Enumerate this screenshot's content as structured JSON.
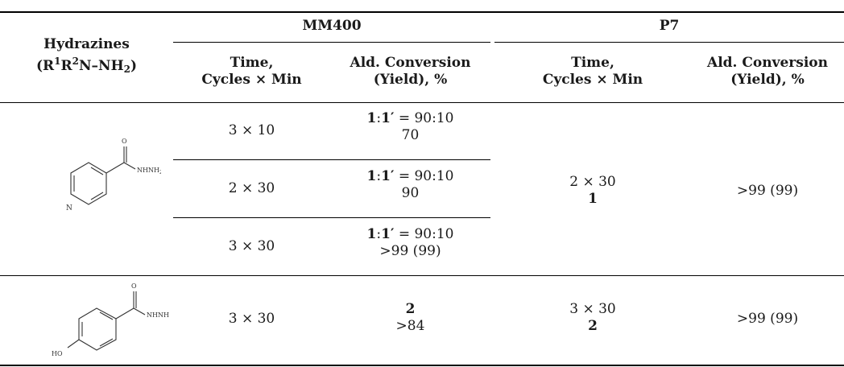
{
  "header": {
    "hydrazines_label": "Hydrazines",
    "formula": {
      "open": "(R",
      "r1_idx": "1",
      "r": "R",
      "r2_idx": "2",
      "mid": "N–NH",
      "h_idx": "2",
      "close": ")"
    },
    "group_mm400": "MM400",
    "group_p7": "P7",
    "time_label": "Time,",
    "cycles_label": "Cycles × Min",
    "conv_label": "Ald. Conversion",
    "yield_label": "(Yield), %"
  },
  "compounds": [
    {
      "name": "isonicotinic hydrazide",
      "atom_n": "N",
      "atom_o": "O",
      "atom_nhnh2": "NHNH",
      "atom_nhnh2_sub": "2"
    },
    {
      "name": "4-hydroxybenzohydrazide",
      "atom_ho": "HO",
      "atom_o": "O",
      "atom_nhnh2": "NHNH",
      "atom_nhnh2_sub": "2"
    }
  ],
  "rows": [
    {
      "mm_time": "3 × 10",
      "ratio_a": "1",
      "ratio_b": "1′",
      "ratio_value": " = 90:10",
      "mm_conv": "70"
    },
    {
      "mm_time": "2 × 30",
      "ratio_a": "1",
      "ratio_b": "1′",
      "ratio_value": " = 90:10",
      "mm_conv": "90"
    },
    {
      "mm_time": "3 × 30",
      "ratio_a": "1",
      "ratio_b": "1′",
      "ratio_value": " = 90:10",
      "mm_conv": ">99 (99)"
    },
    {
      "mm_time": "3 × 30",
      "product": "2",
      "mm_conv": ">84"
    }
  ],
  "p7": [
    {
      "time": "2 × 30",
      "product": "1",
      "conv": ">99 (99)"
    },
    {
      "time": "3 × 30",
      "product": "2",
      "conv": ">99 (99)"
    }
  ]
}
